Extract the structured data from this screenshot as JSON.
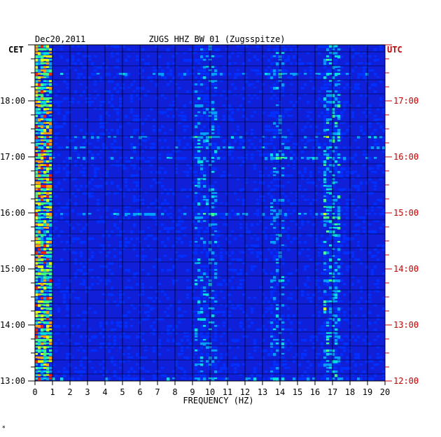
{
  "chart_data": {
    "type": "heatmap",
    "date": "Dec20,2011",
    "title": "ZUGS HHZ BW 01 (Zugsspitze)",
    "left_timezone": "CET",
    "right_timezone": "UTC",
    "xlabel": "FREQUENCY (HZ)",
    "xlim": [
      0,
      20
    ],
    "x_ticks": [
      "0",
      "1",
      "2",
      "3",
      "4",
      "5",
      "6",
      "7",
      "8",
      "9",
      "10",
      "11",
      "12",
      "13",
      "14",
      "15",
      "16",
      "17",
      "18",
      "19",
      "20"
    ],
    "y_ticks_left": [
      "13:00",
      "14:00",
      "15:00",
      "16:00",
      "17:00",
      "18:00"
    ],
    "y_ticks_right": [
      "12:00",
      "13:00",
      "14:00",
      "15:00",
      "16:00",
      "17:00"
    ],
    "time_range_cet": [
      "13:00",
      "19:00"
    ],
    "colormap": [
      "#0000c8",
      "#0030ff",
      "#00a0ff",
      "#00e0e0",
      "#40ff80",
      "#e0ff00",
      "#ffa000",
      "#ff2000"
    ],
    "background_color": "#1020d8",
    "right_axis_color": "#cc0000",
    "corner_mark": "*"
  }
}
